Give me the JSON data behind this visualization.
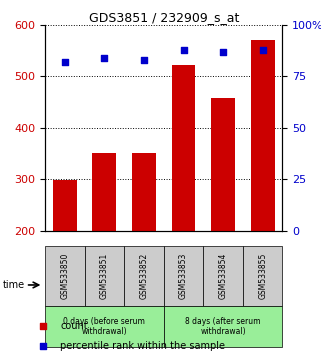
{
  "title": "GDS3851 / 232909_s_at",
  "samples": [
    "GSM533850",
    "GSM533851",
    "GSM533852",
    "GSM533853",
    "GSM533854",
    "GSM533855"
  ],
  "counts": [
    298,
    352,
    352,
    521,
    457,
    571
  ],
  "percentiles": [
    82,
    84,
    83,
    88,
    87,
    88
  ],
  "ylim_left": [
    200,
    600
  ],
  "ylim_right": [
    0,
    100
  ],
  "yticks_left": [
    200,
    300,
    400,
    500,
    600
  ],
  "yticks_right": [
    0,
    25,
    50,
    75,
    100
  ],
  "yticklabels_right": [
    "0",
    "25",
    "50",
    "75",
    "100%"
  ],
  "bar_color": "#cc0000",
  "scatter_color": "#0000cc",
  "grid_color": "#000000",
  "group1_label": "0 days (before serum\nwithdrawal)",
  "group2_label": "8 days (after serum\nwithdrawal)",
  "group1_indices": [
    0,
    1,
    2
  ],
  "group2_indices": [
    3,
    4,
    5
  ],
  "group_bg_color": "#99ee99",
  "sample_bg_color": "#cccccc",
  "time_label": "time",
  "legend_count_label": "count",
  "legend_pct_label": "percentile rank within the sample"
}
